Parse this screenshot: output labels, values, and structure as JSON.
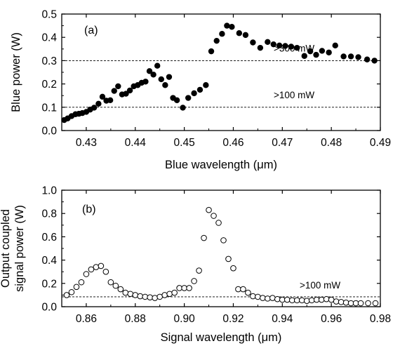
{
  "chart_data": [
    {
      "type": "scatter",
      "panel_label": "(a)",
      "xlabel": "Blue wavelength (μm)",
      "ylabel": "Blue power (W)",
      "xlim": [
        0.425,
        0.49
      ],
      "ylim": [
        0.0,
        0.5
      ],
      "xticks": [
        "0.43",
        "0.44",
        "0.45",
        "0.46",
        "0.47",
        "0.48",
        "0.49"
      ],
      "yticks": [
        "0.0",
        "0.1",
        "0.2",
        "0.3",
        "0.4",
        "0.5"
      ],
      "marker": "filled-circle",
      "reference_lines": [
        {
          "y": 0.3,
          "label": ">300 mW"
        },
        {
          "y": 0.1,
          "label": ">100 mW"
        }
      ],
      "series": [
        {
          "points": [
            [
              0.4255,
              0.045
            ],
            [
              0.4262,
              0.052
            ],
            [
              0.427,
              0.062
            ],
            [
              0.4278,
              0.07
            ],
            [
              0.4285,
              0.072
            ],
            [
              0.4292,
              0.075
            ],
            [
              0.43,
              0.08
            ],
            [
              0.4308,
              0.09
            ],
            [
              0.4316,
              0.098
            ],
            [
              0.4325,
              0.115
            ],
            [
              0.4333,
              0.145
            ],
            [
              0.4341,
              0.128
            ],
            [
              0.4349,
              0.13
            ],
            [
              0.4357,
              0.17
            ],
            [
              0.4365,
              0.19
            ],
            [
              0.4373,
              0.155
            ],
            [
              0.4381,
              0.158
            ],
            [
              0.4389,
              0.172
            ],
            [
              0.4397,
              0.19
            ],
            [
              0.4405,
              0.195
            ],
            [
              0.4413,
              0.205
            ],
            [
              0.4421,
              0.21
            ],
            [
              0.4429,
              0.255
            ],
            [
              0.4437,
              0.24
            ],
            [
              0.4445,
              0.278
            ],
            [
              0.4453,
              0.22
            ],
            [
              0.4461,
              0.195
            ],
            [
              0.4469,
              0.23
            ],
            [
              0.4477,
              0.14
            ],
            [
              0.4485,
              0.13
            ],
            [
              0.4497,
              0.098
            ],
            [
              0.4508,
              0.14
            ],
            [
              0.452,
              0.16
            ],
            [
              0.4532,
              0.175
            ],
            [
              0.4544,
              0.195
            ],
            [
              0.4555,
              0.34
            ],
            [
              0.4566,
              0.385
            ],
            [
              0.4577,
              0.415
            ],
            [
              0.4587,
              0.45
            ],
            [
              0.4597,
              0.445
            ],
            [
              0.4612,
              0.418
            ],
            [
              0.4625,
              0.41
            ],
            [
              0.464,
              0.378
            ],
            [
              0.4655,
              0.355
            ],
            [
              0.467,
              0.38
            ],
            [
              0.4682,
              0.37
            ],
            [
              0.4694,
              0.365
            ],
            [
              0.4706,
              0.363
            ],
            [
              0.4718,
              0.36
            ],
            [
              0.473,
              0.355
            ],
            [
              0.4745,
              0.32
            ],
            [
              0.4757,
              0.34
            ],
            [
              0.4769,
              0.325
            ],
            [
              0.4781,
              0.342
            ],
            [
              0.4795,
              0.335
            ],
            [
              0.4808,
              0.365
            ],
            [
              0.4825,
              0.318
            ],
            [
              0.484,
              0.318
            ],
            [
              0.4855,
              0.315
            ],
            [
              0.4873,
              0.305
            ],
            [
              0.4888,
              0.3
            ]
          ]
        }
      ]
    },
    {
      "type": "scatter",
      "panel_label": "(b)",
      "xlabel": "Signal wavelength (μm)",
      "ylabel_lines": [
        "Output coupled",
        "signal power (W)"
      ],
      "xlim": [
        0.85,
        0.98
      ],
      "ylim": [
        0.0,
        1.0
      ],
      "xticks": [
        "0.86",
        "0.88",
        "0.90",
        "0.92",
        "0.94",
        "0.96",
        "0.98"
      ],
      "yticks": [
        "0.0",
        "0.2",
        "0.4",
        "0.6",
        "0.8",
        "1.0"
      ],
      "marker": "open-circle",
      "reference_lines": [
        {
          "y": 0.085,
          "label": ">100 mW"
        }
      ],
      "series": [
        {
          "points": [
            [
              0.852,
              0.1
            ],
            [
              0.854,
              0.125
            ],
            [
              0.856,
              0.17
            ],
            [
              0.858,
              0.21
            ],
            [
              0.86,
              0.28
            ],
            [
              0.862,
              0.32
            ],
            [
              0.864,
              0.34
            ],
            [
              0.866,
              0.35
            ],
            [
              0.868,
              0.3
            ],
            [
              0.87,
              0.21
            ],
            [
              0.872,
              0.18
            ],
            [
              0.874,
              0.15
            ],
            [
              0.876,
              0.12
            ],
            [
              0.878,
              0.11
            ],
            [
              0.88,
              0.1
            ],
            [
              0.882,
              0.09
            ],
            [
              0.884,
              0.085
            ],
            [
              0.886,
              0.08
            ],
            [
              0.888,
              0.075
            ],
            [
              0.89,
              0.085
            ],
            [
              0.892,
              0.1
            ],
            [
              0.894,
              0.11
            ],
            [
              0.896,
              0.12
            ],
            [
              0.898,
              0.16
            ],
            [
              0.9,
              0.16
            ],
            [
              0.902,
              0.16
            ],
            [
              0.904,
              0.22
            ],
            [
              0.906,
              0.31
            ],
            [
              0.908,
              0.59
            ],
            [
              0.91,
              0.83
            ],
            [
              0.912,
              0.78
            ],
            [
              0.914,
              0.72
            ],
            [
              0.916,
              0.57
            ],
            [
              0.918,
              0.41
            ],
            [
              0.92,
              0.33
            ],
            [
              0.922,
              0.15
            ],
            [
              0.924,
              0.15
            ],
            [
              0.926,
              0.12
            ],
            [
              0.928,
              0.09
            ],
            [
              0.93,
              0.085
            ],
            [
              0.932,
              0.075
            ],
            [
              0.934,
              0.07
            ],
            [
              0.936,
              0.075
            ],
            [
              0.938,
              0.065
            ],
            [
              0.94,
              0.06
            ],
            [
              0.942,
              0.06
            ],
            [
              0.944,
              0.055
            ],
            [
              0.946,
              0.055
            ],
            [
              0.948,
              0.055
            ],
            [
              0.95,
              0.05
            ],
            [
              0.952,
              0.055
            ],
            [
              0.954,
              0.06
            ],
            [
              0.956,
              0.06
            ],
            [
              0.958,
              0.065
            ],
            [
              0.96,
              0.06
            ],
            [
              0.962,
              0.045
            ],
            [
              0.964,
              0.04
            ],
            [
              0.966,
              0.035
            ],
            [
              0.968,
              0.03
            ],
            [
              0.97,
              0.03
            ],
            [
              0.972,
              0.03
            ],
            [
              0.975,
              0.03
            ],
            [
              0.978,
              0.03
            ]
          ]
        }
      ]
    }
  ]
}
